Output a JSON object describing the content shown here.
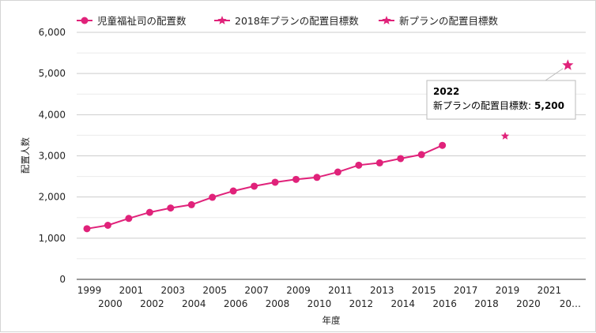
{
  "chart_data": {
    "type": "line",
    "xlabel": "年度",
    "ylabel": "配置人数",
    "ylim": [
      0,
      6000
    ],
    "yticks": [
      0,
      1000,
      2000,
      3000,
      4000,
      5000,
      6000
    ],
    "ytick_labels": [
      "0",
      "1,000",
      "2,000",
      "3,000",
      "4,000",
      "5,000",
      "6,000"
    ],
    "xlim": [
      1999,
      2022
    ],
    "xtick_labels": [
      "1999",
      "2000",
      "2001",
      "2002",
      "2003",
      "2004",
      "2005",
      "2006",
      "2007",
      "2008",
      "2009",
      "2010",
      "2011",
      "2012",
      "2013",
      "2014",
      "2015",
      "2016",
      "2017",
      "2018",
      "2019",
      "2020",
      "2021",
      "20…"
    ],
    "grid": true,
    "legend_position": "top",
    "series": [
      {
        "name": "児童福祉司の配置数",
        "marker": "circle",
        "color": "#e0227a",
        "x": [
          1999,
          2000,
          2001,
          2002,
          2003,
          2004,
          2005,
          2006,
          2007,
          2008,
          2009,
          2010,
          2011,
          2012,
          2013,
          2014,
          2015,
          2016
        ],
        "values": [
          1230,
          1313,
          1480,
          1627,
          1733,
          1813,
          1993,
          2146,
          2263,
          2358,
          2428,
          2477,
          2606,
          2773,
          2829,
          2934,
          3030,
          3255
        ]
      },
      {
        "name": "2018年プランの配置目標数",
        "marker": "star",
        "color": "#e0227a",
        "x": [
          2019
        ],
        "values": [
          3480
        ]
      },
      {
        "name": "新プランの配置目標数",
        "marker": "star",
        "color": "#e0227a",
        "x": [
          2022
        ],
        "values": [
          5200
        ]
      }
    ],
    "tooltip": {
      "title": "2022",
      "label": "新プランの配置目標数:",
      "value": "5,200"
    }
  }
}
